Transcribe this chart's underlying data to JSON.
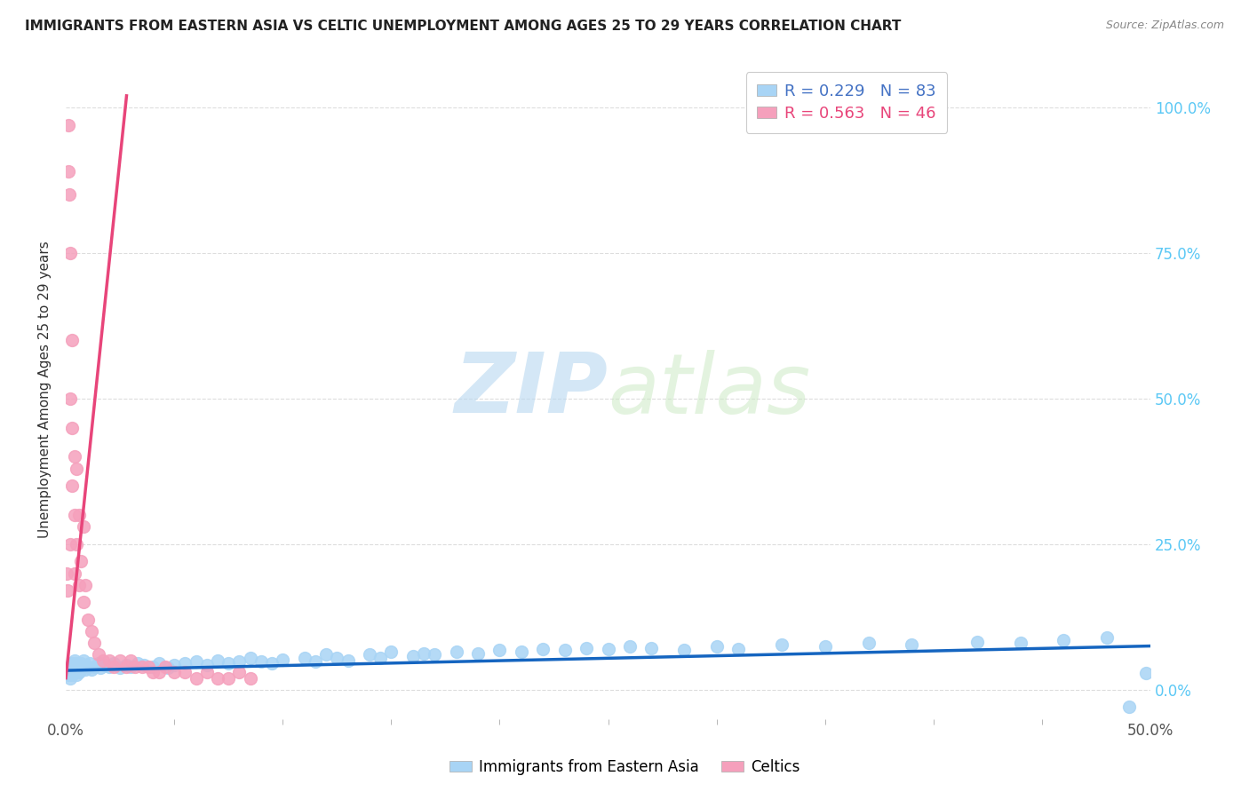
{
  "title": "IMMIGRANTS FROM EASTERN ASIA VS CELTIC UNEMPLOYMENT AMONG AGES 25 TO 29 YEARS CORRELATION CHART",
  "source": "Source: ZipAtlas.com",
  "ylabel": "Unemployment Among Ages 25 to 29 years",
  "xlim": [
    0.0,
    0.5
  ],
  "ylim": [
    -0.05,
    1.08
  ],
  "xtick_positions": [
    0.0,
    0.5
  ],
  "xticklabels": [
    "0.0%",
    "50.0%"
  ],
  "yticks_right": [
    0.0,
    0.25,
    0.5,
    0.75,
    1.0
  ],
  "yticklabels_right": [
    "0.0%",
    "25.0%",
    "50.0%",
    "75.0%",
    "100.0%"
  ],
  "blue_color": "#A8D4F5",
  "pink_color": "#F5A0BC",
  "blue_line_color": "#1565C0",
  "pink_line_color": "#E8457A",
  "R_blue": 0.229,
  "N_blue": 83,
  "R_pink": 0.563,
  "N_pink": 46,
  "legend_label_blue": "Immigrants from Eastern Asia",
  "legend_label_pink": "Celtics",
  "watermark_zip": "ZIP",
  "watermark_atlas": "atlas",
  "background_color": "#FFFFFF",
  "grid_color": "#DDDDDD",
  "blue_scatter_x": [
    0.001,
    0.001,
    0.002,
    0.002,
    0.002,
    0.003,
    0.003,
    0.003,
    0.004,
    0.004,
    0.004,
    0.005,
    0.005,
    0.005,
    0.006,
    0.006,
    0.007,
    0.007,
    0.008,
    0.008,
    0.009,
    0.01,
    0.011,
    0.012,
    0.013,
    0.015,
    0.016,
    0.018,
    0.02,
    0.022,
    0.025,
    0.028,
    0.03,
    0.033,
    0.036,
    0.04,
    0.043,
    0.047,
    0.05,
    0.055,
    0.06,
    0.065,
    0.07,
    0.075,
    0.08,
    0.085,
    0.09,
    0.095,
    0.1,
    0.11,
    0.115,
    0.12,
    0.125,
    0.13,
    0.14,
    0.145,
    0.15,
    0.16,
    0.165,
    0.17,
    0.18,
    0.19,
    0.2,
    0.21,
    0.22,
    0.23,
    0.24,
    0.25,
    0.26,
    0.27,
    0.285,
    0.3,
    0.31,
    0.33,
    0.35,
    0.37,
    0.39,
    0.42,
    0.44,
    0.46,
    0.48,
    0.49,
    0.498
  ],
  "blue_scatter_y": [
    0.035,
    0.025,
    0.04,
    0.03,
    0.02,
    0.045,
    0.035,
    0.025,
    0.04,
    0.03,
    0.05,
    0.035,
    0.045,
    0.025,
    0.04,
    0.03,
    0.045,
    0.035,
    0.04,
    0.05,
    0.035,
    0.04,
    0.045,
    0.035,
    0.04,
    0.045,
    0.038,
    0.042,
    0.04,
    0.045,
    0.038,
    0.043,
    0.04,
    0.045,
    0.042,
    0.04,
    0.045,
    0.038,
    0.042,
    0.045,
    0.048,
    0.042,
    0.05,
    0.045,
    0.048,
    0.055,
    0.048,
    0.045,
    0.052,
    0.055,
    0.048,
    0.06,
    0.055,
    0.05,
    0.06,
    0.055,
    0.065,
    0.058,
    0.062,
    0.06,
    0.065,
    0.062,
    0.068,
    0.065,
    0.07,
    0.068,
    0.072,
    0.07,
    0.075,
    0.072,
    0.068,
    0.075,
    0.07,
    0.078,
    0.075,
    0.08,
    0.078,
    0.082,
    0.08,
    0.085,
    0.09,
    -0.03,
    0.028
  ],
  "pink_scatter_x": [
    0.0005,
    0.0008,
    0.001,
    0.001,
    0.0015,
    0.002,
    0.002,
    0.002,
    0.003,
    0.003,
    0.003,
    0.004,
    0.004,
    0.004,
    0.005,
    0.005,
    0.006,
    0.006,
    0.007,
    0.008,
    0.008,
    0.009,
    0.01,
    0.012,
    0.013,
    0.015,
    0.017,
    0.02,
    0.022,
    0.025,
    0.028,
    0.03,
    0.032,
    0.035,
    0.038,
    0.04,
    0.043,
    0.046,
    0.05,
    0.055,
    0.06,
    0.065,
    0.07,
    0.075,
    0.08,
    0.085
  ],
  "pink_scatter_y": [
    0.2,
    0.17,
    0.97,
    0.89,
    0.85,
    0.75,
    0.5,
    0.25,
    0.6,
    0.45,
    0.35,
    0.4,
    0.3,
    0.2,
    0.38,
    0.25,
    0.3,
    0.18,
    0.22,
    0.28,
    0.15,
    0.18,
    0.12,
    0.1,
    0.08,
    0.06,
    0.05,
    0.05,
    0.04,
    0.05,
    0.04,
    0.05,
    0.04,
    0.04,
    0.04,
    0.03,
    0.03,
    0.04,
    0.03,
    0.03,
    0.02,
    0.03,
    0.02,
    0.02,
    0.03,
    0.02
  ],
  "pink_trend_x0": 0.0,
  "pink_trend_y0": 0.02,
  "pink_trend_x1": 0.028,
  "pink_trend_y1": 1.02,
  "blue_trend_x0": 0.0,
  "blue_trend_y0": 0.033,
  "blue_trend_x1": 0.5,
  "blue_trend_y1": 0.075
}
